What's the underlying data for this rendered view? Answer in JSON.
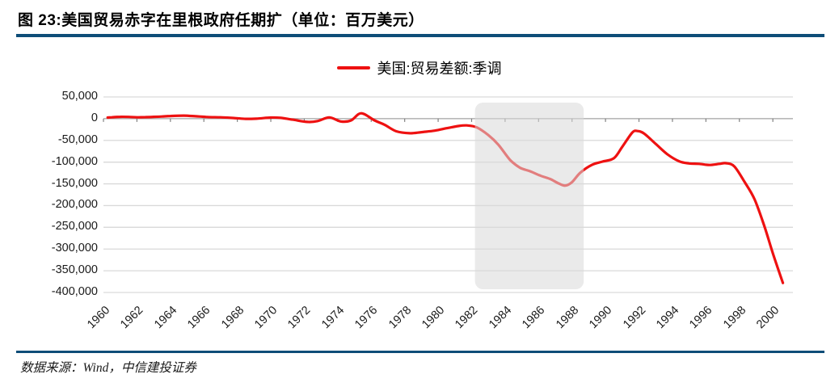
{
  "header": {
    "title": "图 23:美国贸易赤字在里根政府任期扩（单位：百万美元）"
  },
  "legend": {
    "label": "美国:贸易差额:季调"
  },
  "footer": {
    "source": "数据来源：Wind，中信建投证券"
  },
  "colors": {
    "accent_blue": "#0e4d78",
    "series_red": "#ee1111",
    "grid_gray": "#d9d9d9",
    "axis_gray": "#a6a6a6",
    "shade_gray": "#d9d9d9",
    "text_black": "#1a1a1a"
  },
  "chart_data": {
    "type": "line",
    "title": "图 23:美国贸易赤字在里根政府任期扩（单位：百万美元）",
    "unit": "百万美元",
    "xlabel": "",
    "ylabel": "",
    "grid": "horizontal",
    "legend_position": "top-center",
    "xlim": [
      1960,
      2001.2
    ],
    "ylim": [
      -400000,
      50000
    ],
    "x_ticks": [
      1960,
      1962,
      1964,
      1966,
      1968,
      1970,
      1972,
      1974,
      1976,
      1978,
      1980,
      1982,
      1984,
      1986,
      1988,
      1990,
      1992,
      1994,
      1996,
      1998,
      2000
    ],
    "y_ticks": [
      50000,
      0,
      -50000,
      -100000,
      -150000,
      -200000,
      -250000,
      -300000,
      -350000,
      -400000
    ],
    "shaded_region": {
      "x_from": 1982.2,
      "x_to": 1988.7
    },
    "style": {
      "grid_color": "#d9d9d9",
      "axis_color": "#a6a6a6",
      "tick_color": "#808080",
      "shade_color": "#d9d9d9",
      "shade_opacity": 0.55
    },
    "series": [
      {
        "name": "美国:贸易差额:季调",
        "color": "#ee1111",
        "x": [
          1960.25,
          1960.5,
          1961.0,
          1961.5,
          1962.0,
          1962.5,
          1963.0,
          1963.5,
          1964.0,
          1964.8,
          1965.5,
          1966.2,
          1967.0,
          1967.8,
          1968.5,
          1969.2,
          1970.0,
          1970.6,
          1971.3,
          1972.2,
          1972.8,
          1973.5,
          1974.2,
          1974.8,
          1975.4,
          1976.2,
          1976.8,
          1977.5,
          1978.3,
          1979.0,
          1979.8,
          1980.5,
          1981.2,
          1981.7,
          1982.3,
          1983.0,
          1983.6,
          1984.3,
          1984.9,
          1985.5,
          1986.1,
          1986.7,
          1987.2,
          1987.6,
          1988.0,
          1988.5,
          1989.2,
          1989.8,
          1990.5,
          1991.0,
          1991.6,
          1991.9,
          1992.3,
          1993.0,
          1993.7,
          1994.4,
          1995.0,
          1995.6,
          1996.2,
          1996.8,
          1997.2,
          1997.7,
          1998.3,
          1998.9,
          1999.5,
          2000.0,
          2000.6
        ],
        "values": [
          2500,
          3200,
          4300,
          4000,
          3200,
          3600,
          4200,
          5000,
          6200,
          7000,
          5500,
          3800,
          3200,
          1500,
          -300,
          200,
          2600,
          1800,
          -2200,
          -7500,
          -5500,
          2800,
          -6500,
          -4000,
          12500,
          -4000,
          -14000,
          -29000,
          -33500,
          -31000,
          -27500,
          -22000,
          -17000,
          -15500,
          -20000,
          -38000,
          -60000,
          -95000,
          -113000,
          -121000,
          -131000,
          -139000,
          -149000,
          -154000,
          -146000,
          -124000,
          -106000,
          -99000,
          -91000,
          -65000,
          -32000,
          -28500,
          -34000,
          -58000,
          -82000,
          -98000,
          -103000,
          -104000,
          -106500,
          -104000,
          -102500,
          -110000,
          -145000,
          -185000,
          -248000,
          -310000,
          -378000
        ]
      }
    ]
  }
}
